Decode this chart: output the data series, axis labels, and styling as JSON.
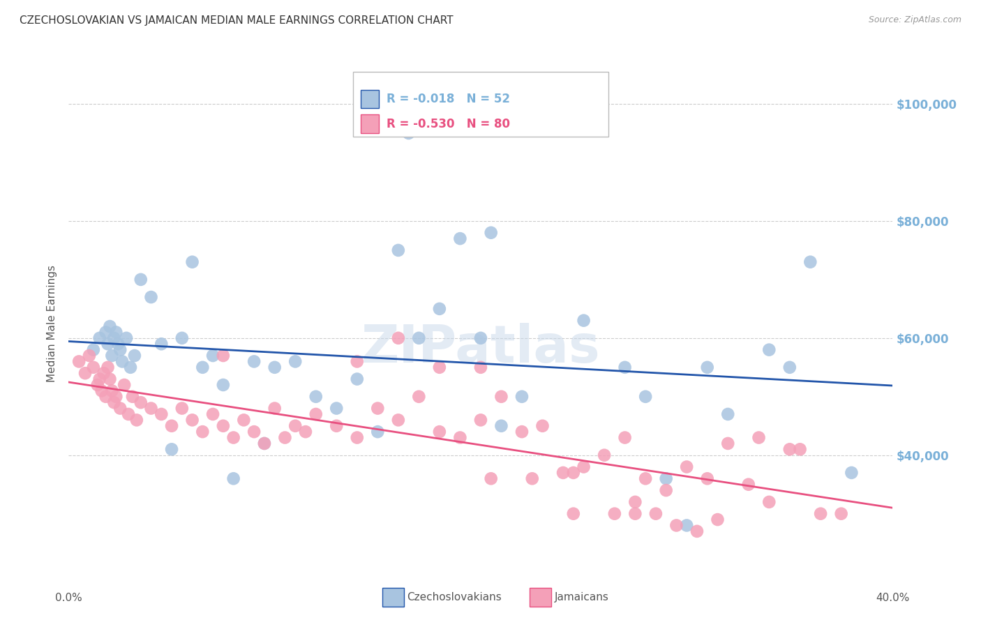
{
  "title": "CZECHOSLOVAKIAN VS JAMAICAN MEDIAN MALE EARNINGS CORRELATION CHART",
  "source": "Source: ZipAtlas.com",
  "ylabel": "Median Male Earnings",
  "watermark": "ZIPatlas",
  "xlim": [
    0.0,
    40.0
  ],
  "ylim": [
    20000,
    105000
  ],
  "yticks": [
    40000,
    60000,
    80000,
    100000
  ],
  "ytick_labels": [
    "$40,000",
    "$60,000",
    "$80,000",
    "$100,000"
  ],
  "blue_R": "-0.018",
  "blue_N": "52",
  "pink_R": "-0.530",
  "pink_N": "80",
  "blue_color": "#a8c4e0",
  "pink_color": "#f4a0b8",
  "blue_line_color": "#2255aa",
  "pink_line_color": "#e85080",
  "legend_blue_label": "Czechoslovakians",
  "legend_pink_label": "Jamaicans",
  "background_color": "#ffffff",
  "grid_color": "#cccccc",
  "title_color": "#333333",
  "axis_label_color": "#7ab0d8",
  "blue_x": [
    1.2,
    1.5,
    1.8,
    1.9,
    2.0,
    2.1,
    2.2,
    2.3,
    2.4,
    2.5,
    2.6,
    2.8,
    3.0,
    3.2,
    3.5,
    4.0,
    4.5,
    5.0,
    5.5,
    6.0,
    6.5,
    7.0,
    7.5,
    8.0,
    9.0,
    9.5,
    10.0,
    11.0,
    12.0,
    13.0,
    14.0,
    15.0,
    16.0,
    17.0,
    18.0,
    19.0,
    20.0,
    21.0,
    22.0,
    25.0,
    27.0,
    28.0,
    29.0,
    30.0,
    31.0,
    32.0,
    34.0,
    35.0,
    36.0,
    38.0,
    16.5,
    20.5
  ],
  "blue_y": [
    58000,
    60000,
    61000,
    59000,
    62000,
    57000,
    60000,
    61000,
    59000,
    58000,
    56000,
    60000,
    55000,
    57000,
    70000,
    67000,
    59000,
    41000,
    60000,
    73000,
    55000,
    57000,
    52000,
    36000,
    56000,
    42000,
    55000,
    56000,
    50000,
    48000,
    53000,
    44000,
    75000,
    60000,
    65000,
    77000,
    60000,
    45000,
    50000,
    63000,
    55000,
    50000,
    36000,
    28000,
    55000,
    47000,
    58000,
    55000,
    73000,
    37000,
    95000,
    78000
  ],
  "pink_x": [
    0.5,
    0.8,
    1.0,
    1.2,
    1.4,
    1.5,
    1.6,
    1.7,
    1.8,
    1.9,
    2.0,
    2.1,
    2.2,
    2.3,
    2.5,
    2.7,
    2.9,
    3.1,
    3.3,
    3.5,
    4.0,
    4.5,
    5.0,
    5.5,
    6.0,
    6.5,
    7.0,
    7.5,
    8.0,
    8.5,
    9.0,
    9.5,
    10.0,
    10.5,
    11.0,
    11.5,
    12.0,
    13.0,
    14.0,
    15.0,
    16.0,
    17.0,
    18.0,
    19.0,
    20.0,
    21.0,
    22.0,
    23.0,
    24.0,
    25.0,
    26.0,
    27.0,
    28.0,
    29.0,
    30.0,
    31.0,
    32.0,
    33.0,
    34.0,
    35.0,
    24.5,
    26.5,
    27.5,
    29.5,
    30.5,
    31.5,
    33.5,
    35.5,
    36.5,
    37.5,
    27.5,
    28.5,
    20.5,
    22.5,
    24.5,
    14.0,
    16.0,
    18.0,
    20.0,
    7.5
  ],
  "pink_y": [
    56000,
    54000,
    57000,
    55000,
    52000,
    53000,
    51000,
    54000,
    50000,
    55000,
    53000,
    51000,
    49000,
    50000,
    48000,
    52000,
    47000,
    50000,
    46000,
    49000,
    48000,
    47000,
    45000,
    48000,
    46000,
    44000,
    47000,
    45000,
    43000,
    46000,
    44000,
    42000,
    48000,
    43000,
    45000,
    44000,
    47000,
    45000,
    43000,
    48000,
    46000,
    50000,
    44000,
    43000,
    46000,
    50000,
    44000,
    45000,
    37000,
    38000,
    40000,
    43000,
    36000,
    34000,
    38000,
    36000,
    42000,
    35000,
    32000,
    41000,
    30000,
    30000,
    32000,
    28000,
    27000,
    29000,
    43000,
    41000,
    30000,
    30000,
    30000,
    30000,
    36000,
    36000,
    37000,
    56000,
    60000,
    55000,
    55000,
    57000
  ]
}
